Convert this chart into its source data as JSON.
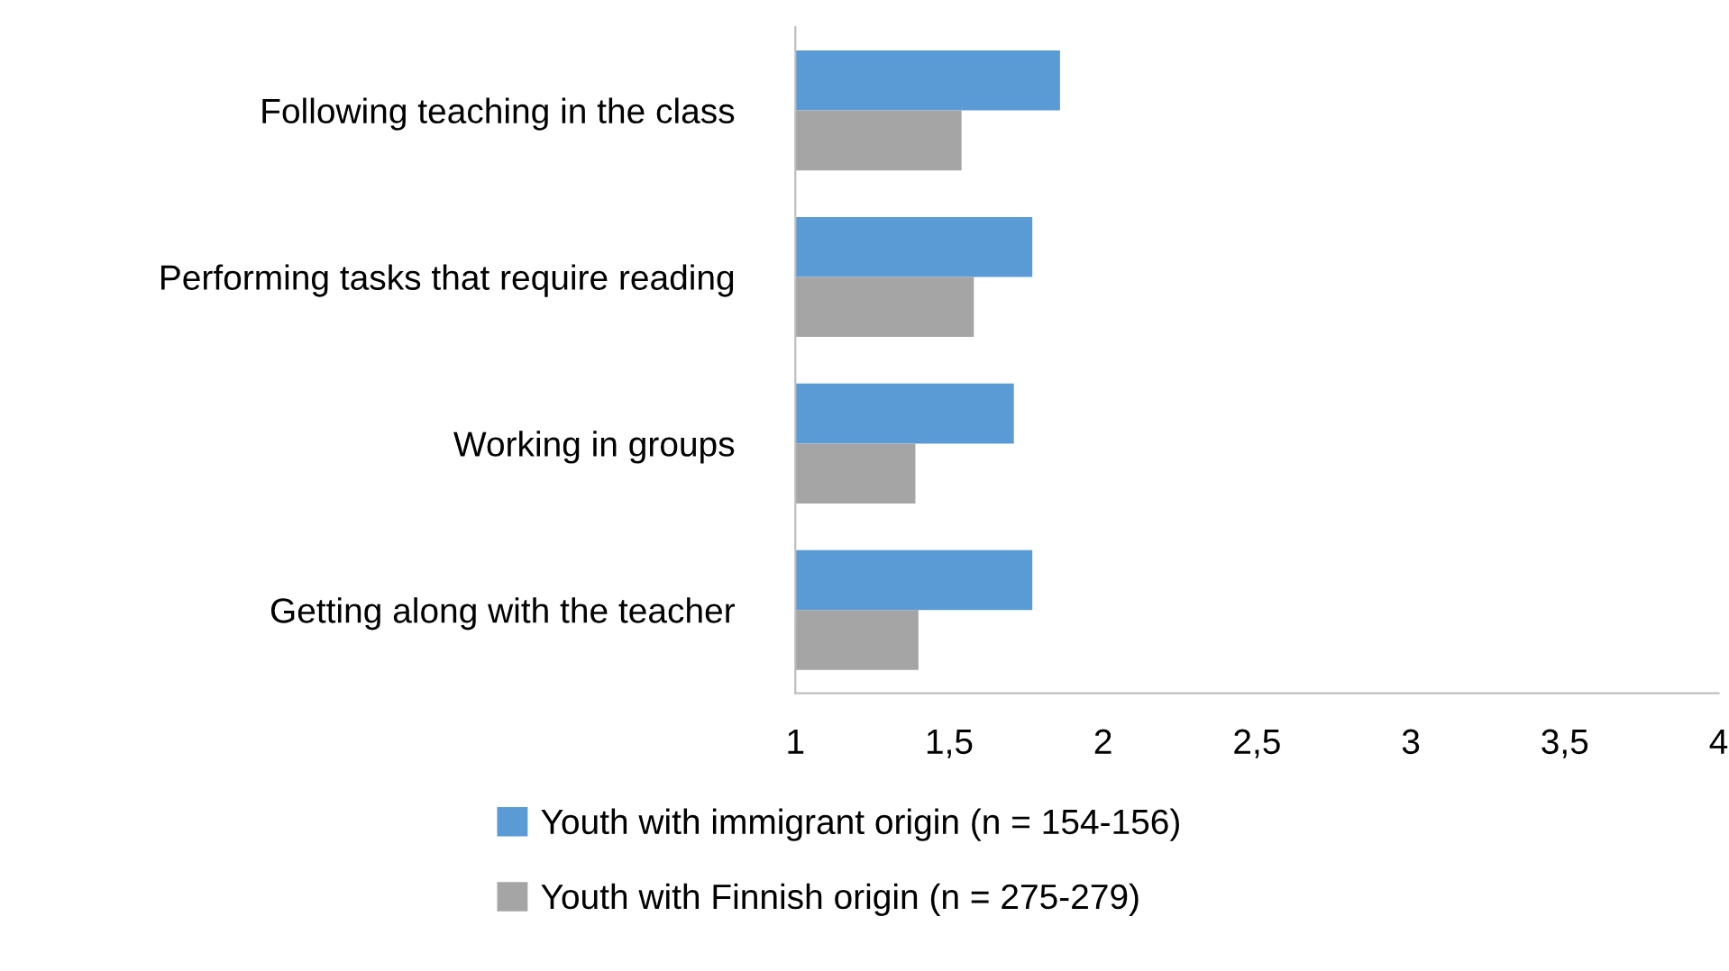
{
  "chart_data": {
    "type": "bar",
    "orientation": "horizontal",
    "categories": [
      "Following teaching in the class",
      "Performing tasks that require reading",
      "Working in groups",
      "Getting along with the teacher"
    ],
    "series": [
      {
        "name": "Youth with immigrant origin (n = 154-156)",
        "color": "#5b9bd5",
        "values": [
          1.86,
          1.77,
          1.71,
          1.77
        ]
      },
      {
        "name": "Youth with Finnish origin (n = 275-279)",
        "color": "#a5a5a5",
        "values": [
          1.54,
          1.58,
          1.39,
          1.4
        ]
      }
    ],
    "xlim": [
      1,
      4
    ],
    "xticks": [
      1,
      {
        "value": 1.5,
        "label": "1,5"
      },
      2,
      {
        "value": 2.5,
        "label": "2,5"
      },
      3,
      {
        "value": 3.5,
        "label": "3,5"
      },
      4
    ],
    "grid": false,
    "legend": "bottom"
  }
}
